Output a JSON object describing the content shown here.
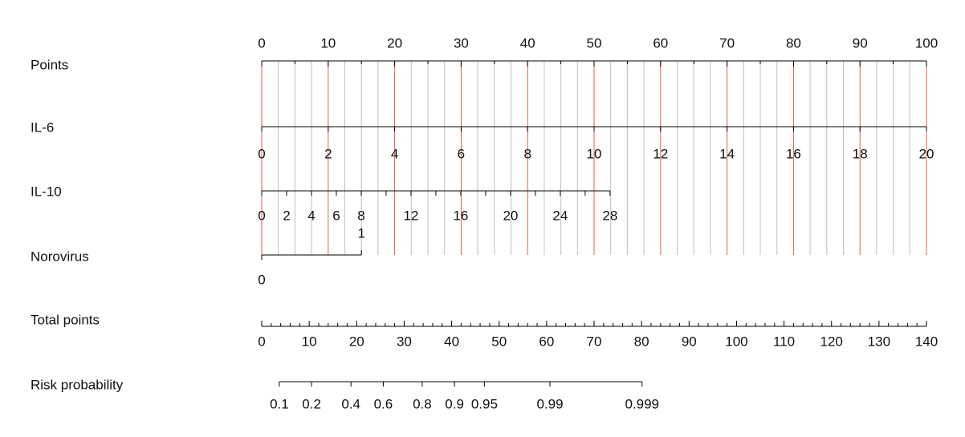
{
  "chart_data": {
    "type": "nomogram",
    "grid_color": "#bfbfbf",
    "major_grid_color": "#e06050",
    "points_axis": {
      "label": "Points",
      "xlim": [
        0,
        100
      ],
      "xticks": [
        0,
        10,
        20,
        30,
        40,
        50,
        60,
        70,
        80,
        90,
        100
      ],
      "minor_ticks": [
        5,
        15,
        25,
        35,
        45,
        55,
        65,
        75,
        85,
        95
      ],
      "grid": [
        2.5,
        5,
        7.5,
        12.5,
        15,
        17.5,
        22.5,
        25,
        27.5,
        32.5,
        35,
        37.5,
        42.5,
        45,
        47.5,
        52.5,
        55,
        57.5,
        62.5,
        65,
        67.5,
        72.5,
        75,
        77.5,
        82.5,
        85,
        87.5,
        92.5,
        95,
        97.5
      ]
    },
    "rows": [
      {
        "label": "IL-6",
        "xlim": [
          0,
          20
        ],
        "points": [
          0,
          100
        ],
        "xticks": [
          0,
          2,
          4,
          6,
          8,
          10,
          12,
          14,
          16,
          18,
          20
        ],
        "minor_ticks": []
      },
      {
        "label": "IL-10",
        "xlim": [
          0,
          28
        ],
        "points": [
          0,
          52.4
        ],
        "xticks": [
          0,
          2,
          4,
          6,
          8,
          12,
          16,
          20,
          24,
          28
        ],
        "minor_ticks": [
          10,
          14,
          18,
          22,
          26
        ]
      },
      {
        "label": "Norovirus",
        "xlim": [
          0,
          1
        ],
        "points": [
          0,
          15
        ],
        "xticks": [
          0,
          1
        ],
        "minor_ticks": []
      }
    ],
    "total_axis": {
      "label": "Total points",
      "xlim": [
        0,
        140
      ],
      "xticks": [
        0,
        10,
        20,
        30,
        40,
        50,
        60,
        70,
        80,
        90,
        100,
        110,
        120,
        130,
        140
      ],
      "minor_ticks": [
        2,
        4,
        6,
        8,
        12,
        14,
        16,
        18,
        22,
        24,
        26,
        28,
        32,
        34,
        36,
        38,
        42,
        44,
        46,
        48,
        52,
        54,
        56,
        58,
        62,
        64,
        66,
        68,
        72,
        74,
        76,
        78,
        82,
        84,
        86,
        88,
        92,
        94,
        96,
        98,
        102,
        104,
        106,
        108,
        112,
        114,
        116,
        118,
        122,
        124,
        126,
        128,
        132,
        134,
        136,
        138
      ]
    },
    "risk_axis": {
      "label": "Risk probability",
      "xticks": [
        0.1,
        0.2,
        0.4,
        0.6,
        0.8,
        0.9,
        0.95,
        0.99,
        0.999
      ],
      "total_points": [
        3.7,
        10.5,
        18.8,
        25.6,
        33.8,
        40.6,
        46.9,
        60.7,
        80.1
      ]
    }
  }
}
